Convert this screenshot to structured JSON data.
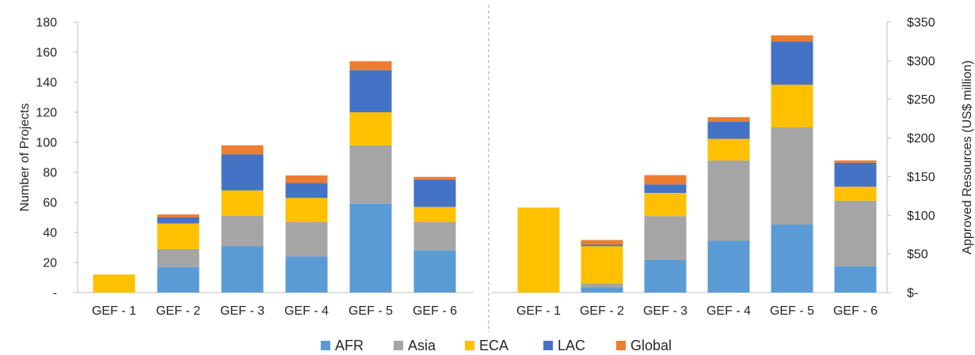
{
  "chart_data": [
    {
      "type": "bar",
      "stacked": true,
      "title": "",
      "xlabel": "",
      "ylabel": "Number of Projects",
      "ylim": [
        0,
        180
      ],
      "yticks": [
        "-",
        "20",
        "40",
        "60",
        "80",
        "100",
        "120",
        "140",
        "160",
        "180"
      ],
      "categories": [
        "GEF - 1",
        "GEF - 2",
        "GEF - 3",
        "GEF - 4",
        "GEF - 5",
        "GEF - 6"
      ],
      "series": [
        {
          "name": "AFR",
          "values": [
            0,
            17,
            31,
            24,
            59,
            28
          ]
        },
        {
          "name": "Asia",
          "values": [
            0,
            12,
            20,
            23,
            39,
            19
          ]
        },
        {
          "name": "ECA",
          "values": [
            12,
            17,
            17,
            16,
            22,
            10
          ]
        },
        {
          "name": "LAC",
          "values": [
            0,
            4,
            24,
            10,
            28,
            18
          ]
        },
        {
          "name": "Global",
          "values": [
            0,
            2,
            6,
            5,
            6,
            2
          ]
        }
      ]
    },
    {
      "type": "bar",
      "stacked": true,
      "title": "",
      "xlabel": "",
      "ylabel": "Approved Resources (US$ million)",
      "ylim": [
        0,
        350
      ],
      "yticks": [
        "$-",
        "$50",
        "$100",
        "$150",
        "$200",
        "$250",
        "$300",
        "$350"
      ],
      "categories": [
        "GEF - 1",
        "GEF - 2",
        "GEF - 3",
        "GEF - 4",
        "GEF - 5",
        "GEF - 6"
      ],
      "series": [
        {
          "name": "AFR",
          "values": [
            0,
            7,
            42,
            67,
            88,
            34
          ]
        },
        {
          "name": "Asia",
          "values": [
            0,
            5,
            57,
            104,
            126,
            85
          ]
        },
        {
          "name": "ECA",
          "values": [
            110,
            48,
            30,
            28,
            55,
            18
          ]
        },
        {
          "name": "LAC",
          "values": [
            0,
            2,
            11,
            22,
            56,
            31
          ]
        },
        {
          "name": "Global",
          "values": [
            0,
            6,
            12,
            6,
            8,
            3
          ]
        }
      ]
    }
  ],
  "legend": {
    "placement": "bottom",
    "items": [
      {
        "name": "AFR",
        "color": "#5B9BD5"
      },
      {
        "name": "Asia",
        "color": "#A5A5A5"
      },
      {
        "name": "ECA",
        "color": "#FFC000"
      },
      {
        "name": "LAC",
        "color": "#4472C4"
      },
      {
        "name": "Global",
        "color": "#ED7D31"
      }
    ]
  },
  "colors": {
    "AFR": "#5B9BD5",
    "Asia": "#A5A5A5",
    "ECA": "#FFC000",
    "LAC": "#4472C4",
    "Global": "#ED7D31",
    "axis": "#BFBFBF",
    "divider": "#A6A6A6"
  }
}
